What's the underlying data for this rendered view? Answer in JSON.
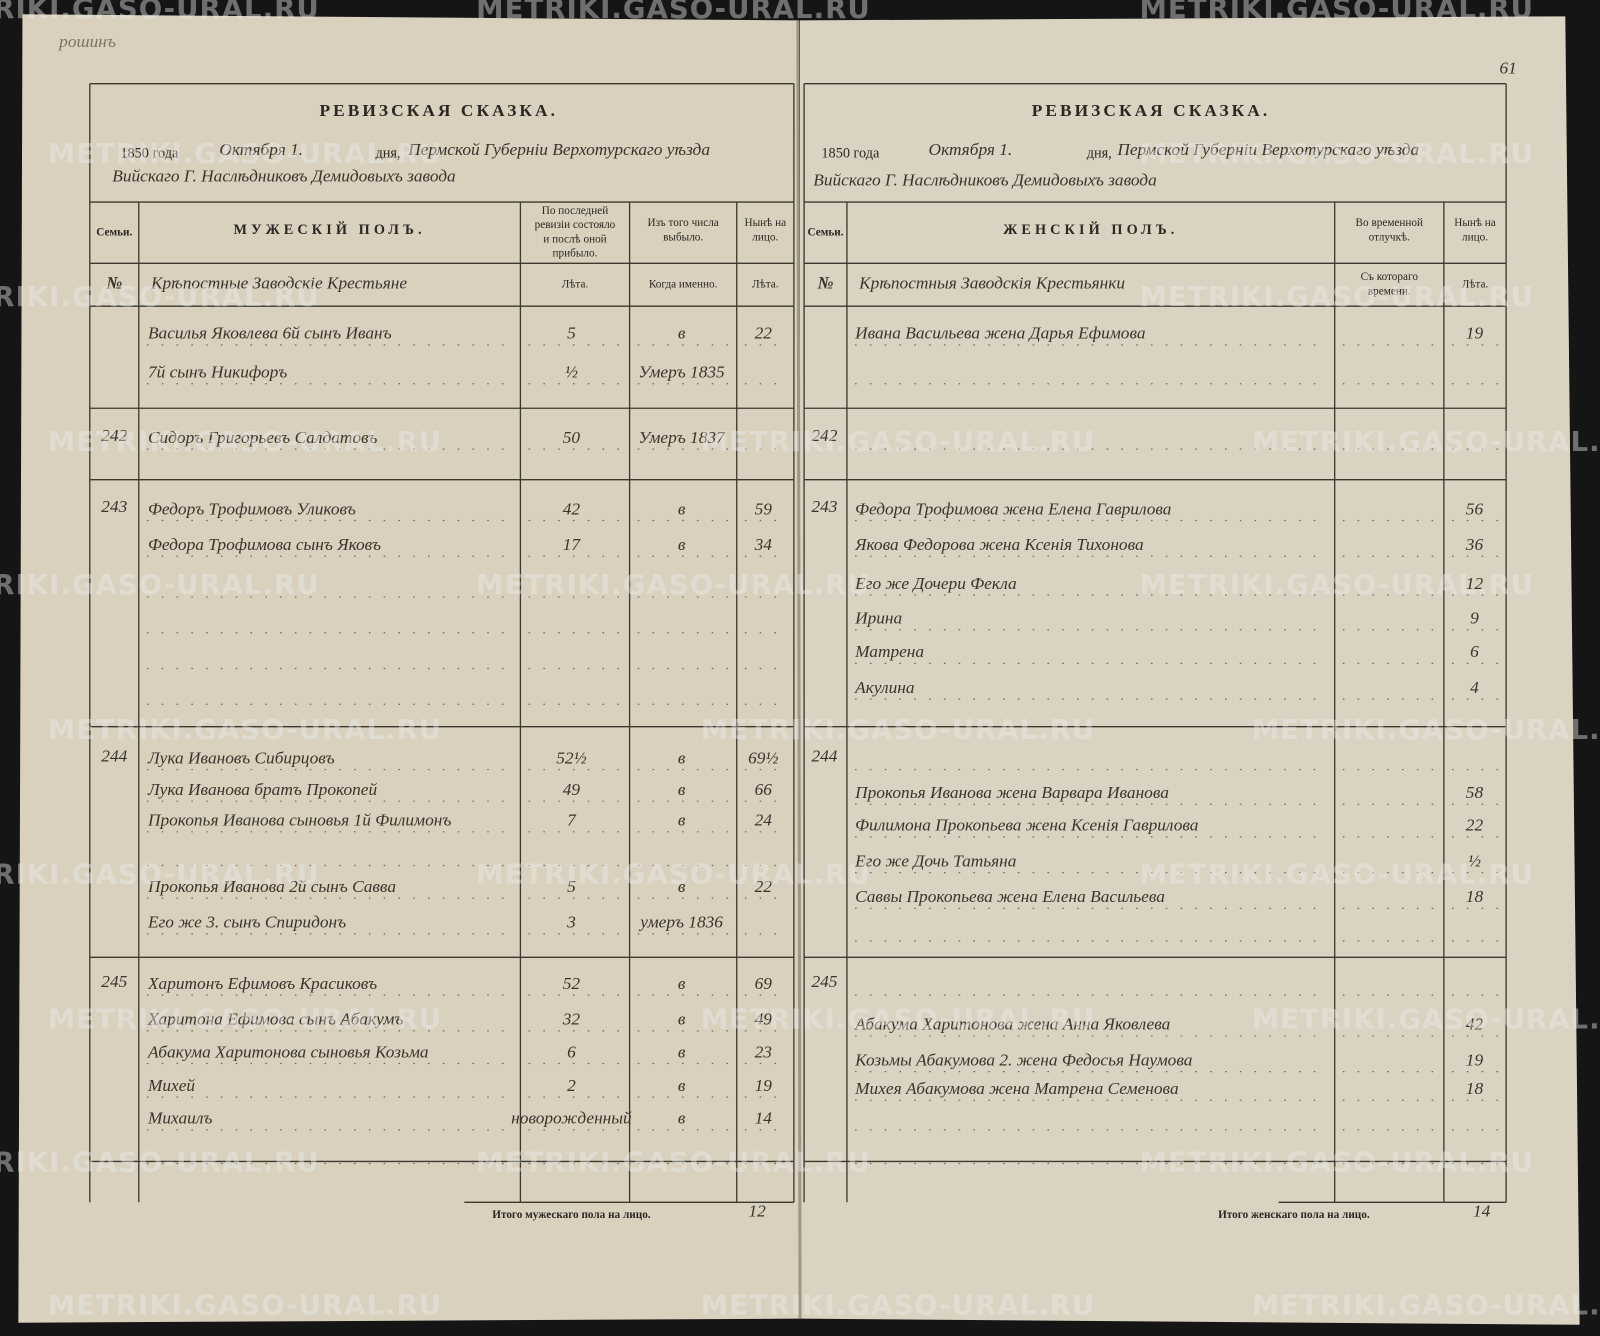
{
  "watermark": "METRIKI.GASO-URAL.RU",
  "corner_note": "рошинъ",
  "page_number": "61",
  "left_page": {
    "title": "РЕВИЗСКАЯ СКАЗКА.",
    "year": "1850 года",
    "date": "Октября 1.",
    "day_label": "дня,",
    "place": "Пермской Губерніи Верхотурскаго уѣзда",
    "place_2": "Вийскаго Г. Наслѣдниковъ Демидовыхъ завода",
    "columns": {
      "family": "Семьи.",
      "name": "МУЖЕСКІЙ ПОЛЪ.",
      "last_revision": [
        "По последней",
        "ревизіи состояло",
        "и послѣ оной",
        "прибыло."
      ],
      "departed": [
        "Изъ того числа",
        "выбыло."
      ],
      "present": [
        "Нынѣ на",
        "лицо."
      ]
    },
    "subheaders": {
      "family": "№",
      "name": "Крѣпостные Заводскіе Крестьяне",
      "last_revision": "Лѣта.",
      "departed": "Когда именно.",
      "present": "Лѣта."
    },
    "rows": [
      {
        "name": "Василья Яковлева 6й сынъ Иванъ",
        "age": "5",
        "departed": "в",
        "present": "22"
      },
      {
        "name": "7й сынъ Никифоръ",
        "age": "½",
        "departed": "Умеръ 1835"
      },
      {
        "family": "242",
        "name": "Сидоръ Григорьевъ Салдатовъ",
        "age": "50",
        "departed": "Умеръ 1837"
      },
      {
        "family": "243",
        "name": "Федоръ Трофимовъ Уликовъ",
        "age": "42",
        "departed": "в",
        "present": "59"
      },
      {
        "name": "Федора Трофимова сынъ Яковъ",
        "age": "17",
        "departed": "в",
        "present": "34"
      },
      {
        "family": "244",
        "name": "Лука Ивановъ Сибирцовъ",
        "age": "52½",
        "departed": "в",
        "present": "69½"
      },
      {
        "name": "Лука Иванова братъ Прокопей",
        "age": "49",
        "departed": "в",
        "present": "66"
      },
      {
        "name": "Прокопья Иванова сыновья 1й Филимонъ",
        "age": "7",
        "departed": "в",
        "present": "24"
      },
      {
        "name": "Прокопья Иванова 2й сынъ Савва",
        "age": "5",
        "departed": "в",
        "present": "22"
      },
      {
        "name": "Его же 3. сынъ Спиридонъ",
        "age": "3",
        "departed": "умеръ 1836"
      },
      {
        "family": "245",
        "name": "Харитонъ Ефимовъ Красиковъ",
        "age": "52",
        "departed": "в",
        "present": "69"
      },
      {
        "name": "Харитона Ефимова сынъ Абакумъ",
        "age": "32",
        "departed": "в",
        "present": "49"
      },
      {
        "name": "Абакума Харитонова сыновья Козьма",
        "age": "6",
        "departed": "в",
        "present": "23"
      },
      {
        "name": "Михей",
        "age": "2",
        "departed": "в",
        "present": "19"
      },
      {
        "name": "Михаилъ",
        "age": "новорожденный",
        "departed": "в",
        "present": "14"
      }
    ],
    "total_label": "Итого мужескаго пола на лицо.",
    "total": "12"
  },
  "right_page": {
    "title": "РЕВИЗСКАЯ СКАЗКА.",
    "year": "1850 года",
    "date": "Октября 1.",
    "day_label": "дня,",
    "place": "Пермской Губерніи Верхотурскаго уѣзда",
    "place_2": "Вийскаго Г. Наслѣдниковъ Демидовыхъ завода",
    "columns": {
      "family": "Семьи.",
      "name": "ЖЕНСКІЙ ПОЛЪ.",
      "absent": [
        "Во временной",
        "отлучкѣ."
      ],
      "present": [
        "Нынѣ на",
        "лицо."
      ]
    },
    "subheaders": {
      "family": "№",
      "name": "Крѣпостныя Заводскія Крестьянки",
      "absent": [
        "Съ котораго",
        "времени."
      ],
      "present": "Лѣта."
    },
    "rows": [
      {
        "name": "Ивана Васильева жена Дарья Ефимова",
        "present": "19"
      },
      {
        "family": "242"
      },
      {
        "family": "243",
        "name": "Федора Трофимова жена Елена Гаврилова",
        "present": "56"
      },
      {
        "name": "Якова Федорова жена Ксенія Тихонова",
        "present": "36"
      },
      {
        "name": "Его же Дочери Фекла",
        "present": "12"
      },
      {
        "name": "Ирина",
        "present": "9"
      },
      {
        "name": "Матрена",
        "present": "6"
      },
      {
        "name": "Акулина",
        "present": "4"
      },
      {
        "family": "244"
      },
      {
        "name": "Прокопья Иванова жена Варвара Иванова",
        "present": "58"
      },
      {
        "name": "Филимона Прокопьева жена Ксенія Гаврилова",
        "present": "22"
      },
      {
        "name": "Его же Дочь Татьяна",
        "present": "½"
      },
      {
        "name": "Саввы Прокопьева жена Елена Васильева",
        "present": "18"
      },
      {
        "family": "245"
      },
      {
        "name": "Абакума Харитонова жена Анна Яковлева",
        "present": "42"
      },
      {
        "name": "Козьмы Абакумова 2. жена Федосья Наумова",
        "present": "19"
      },
      {
        "name": "Михея Абакумова жена Матрена Семенова",
        "present": "18"
      }
    ],
    "total_label": "Итого женскаго пола на лицо.",
    "total": "14"
  }
}
